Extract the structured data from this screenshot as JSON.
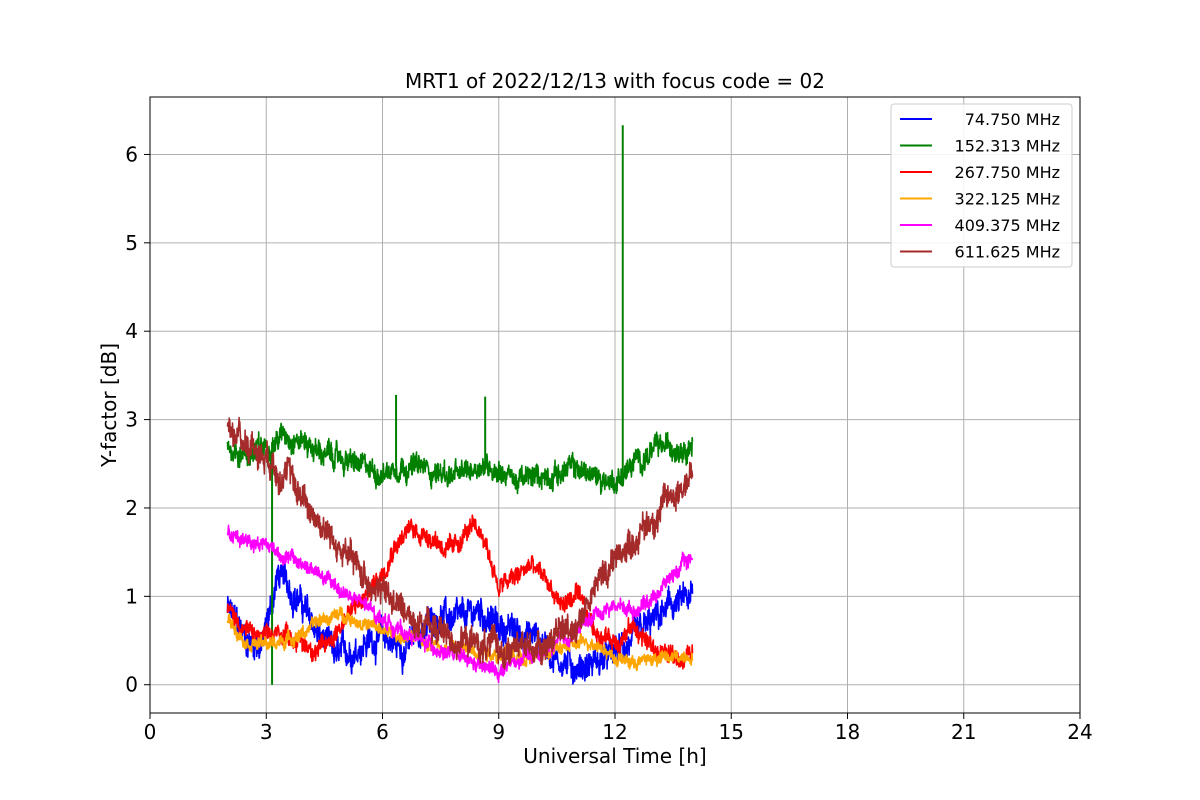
{
  "chart_data": {
    "type": "line",
    "title": "MRT1 of 2022/12/13 with focus code = 02",
    "xlabel": "Universal Time [h]",
    "ylabel": "Y-factor [dB]",
    "xlim": [
      0,
      24
    ],
    "ylim": [
      -0.32,
      6.65
    ],
    "xticks": [
      0,
      3,
      6,
      9,
      12,
      15,
      18,
      21,
      24
    ],
    "yticks": [
      0,
      1,
      2,
      3,
      4,
      5,
      6
    ],
    "grid": true,
    "legend_position": "top-right",
    "series": [
      {
        "name": "74.750 MHz",
        "color": "#0000ff",
        "x": [
          2.0,
          2.5,
          2.9,
          3.3,
          3.8,
          4.3,
          4.8,
          5.2,
          5.6,
          6.0,
          6.5,
          7.0,
          7.5,
          8.0,
          8.5,
          9.0,
          9.5,
          10.0,
          10.5,
          11.0,
          11.5,
          12.0,
          12.5,
          13.0,
          13.5,
          14.0
        ],
        "y": [
          0.85,
          0.5,
          0.45,
          1.25,
          1.0,
          0.6,
          0.3,
          0.4,
          0.5,
          0.55,
          0.4,
          0.6,
          0.8,
          0.7,
          0.85,
          0.65,
          0.6,
          0.55,
          0.3,
          0.2,
          0.25,
          0.35,
          0.5,
          0.7,
          0.9,
          0.95
        ],
        "noise": 0.18
      },
      {
        "name": "152.313 MHz",
        "color": "#008000",
        "x": [
          2.0,
          2.5,
          3.0,
          3.5,
          4.0,
          4.5,
          5.0,
          5.5,
          6.0,
          6.5,
          7.0,
          7.5,
          8.0,
          8.5,
          9.0,
          9.5,
          10.0,
          10.5,
          11.0,
          11.5,
          12.0,
          12.5,
          13.0,
          13.5,
          14.0
        ],
        "y": [
          2.7,
          2.6,
          2.7,
          2.85,
          2.75,
          2.6,
          2.55,
          2.45,
          2.4,
          2.5,
          2.45,
          2.4,
          2.35,
          2.5,
          2.45,
          2.3,
          2.35,
          2.4,
          2.45,
          2.35,
          2.3,
          2.5,
          2.65,
          2.7,
          2.75
        ],
        "noise": 0.14,
        "spikes": [
          [
            3.15,
            0.0
          ],
          [
            6.35,
            3.28
          ],
          [
            8.65,
            3.26
          ],
          [
            12.2,
            6.33
          ]
        ]
      },
      {
        "name": "267.750 MHz",
        "color": "#ff0000",
        "x": [
          2.0,
          2.5,
          3.0,
          3.5,
          4.0,
          4.5,
          5.0,
          5.5,
          6.0,
          6.3,
          6.7,
          7.2,
          7.8,
          8.2,
          8.6,
          9.0,
          9.4,
          9.8,
          10.2,
          10.6,
          11.0,
          11.5,
          12.0,
          12.5,
          13.0,
          13.5,
          14.0
        ],
        "y": [
          0.85,
          0.6,
          0.5,
          0.6,
          0.45,
          0.4,
          0.75,
          0.95,
          1.3,
          1.6,
          1.75,
          1.7,
          1.5,
          1.75,
          1.7,
          1.1,
          1.2,
          1.35,
          1.2,
          0.9,
          1.0,
          0.6,
          0.5,
          0.65,
          0.4,
          0.3,
          0.35
        ],
        "noise": 0.12
      },
      {
        "name": "322.125 MHz",
        "color": "#ffa500",
        "x": [
          2.0,
          2.5,
          3.0,
          3.5,
          4.0,
          4.5,
          5.0,
          5.5,
          6.0,
          6.5,
          7.0,
          7.5,
          8.0,
          8.5,
          9.0,
          9.5,
          10.0,
          10.5,
          11.0,
          11.5,
          12.0,
          12.5,
          13.0,
          13.5,
          14.0
        ],
        "y": [
          0.75,
          0.5,
          0.45,
          0.5,
          0.6,
          0.75,
          0.8,
          0.7,
          0.6,
          0.55,
          0.5,
          0.45,
          0.4,
          0.4,
          0.35,
          0.3,
          0.35,
          0.4,
          0.45,
          0.5,
          0.3,
          0.25,
          0.3,
          0.3,
          0.35
        ],
        "noise": 0.08
      },
      {
        "name": "409.375 MHz",
        "color": "#ff00ff",
        "x": [
          2.0,
          2.5,
          3.0,
          3.5,
          4.0,
          4.5,
          5.0,
          5.5,
          6.0,
          6.5,
          7.0,
          7.5,
          8.0,
          8.5,
          9.0,
          9.5,
          10.0,
          10.5,
          11.0,
          11.5,
          12.0,
          12.5,
          13.0,
          13.5,
          14.0
        ],
        "y": [
          1.7,
          1.65,
          1.6,
          1.45,
          1.35,
          1.2,
          1.05,
          0.9,
          0.75,
          0.6,
          0.5,
          0.4,
          0.3,
          0.2,
          0.15,
          0.25,
          0.35,
          0.45,
          0.6,
          0.8,
          0.9,
          0.85,
          1.0,
          1.25,
          1.45
        ],
        "noise": 0.09
      },
      {
        "name": "611.625 MHz",
        "color": "#a52a2a",
        "x": [
          2.0,
          2.5,
          3.0,
          3.5,
          4.0,
          4.5,
          5.0,
          5.5,
          6.0,
          6.5,
          7.0,
          7.5,
          8.0,
          8.5,
          9.0,
          9.5,
          10.0,
          10.5,
          11.0,
          11.5,
          12.0,
          12.5,
          13.0,
          13.5,
          14.0
        ],
        "y": [
          2.9,
          2.75,
          2.6,
          2.4,
          2.1,
          1.75,
          1.5,
          1.25,
          1.05,
          0.85,
          0.7,
          0.6,
          0.5,
          0.45,
          0.4,
          0.4,
          0.45,
          0.55,
          0.7,
          1.1,
          1.45,
          1.65,
          1.9,
          2.15,
          2.4
        ],
        "noise": 0.18
      }
    ]
  }
}
